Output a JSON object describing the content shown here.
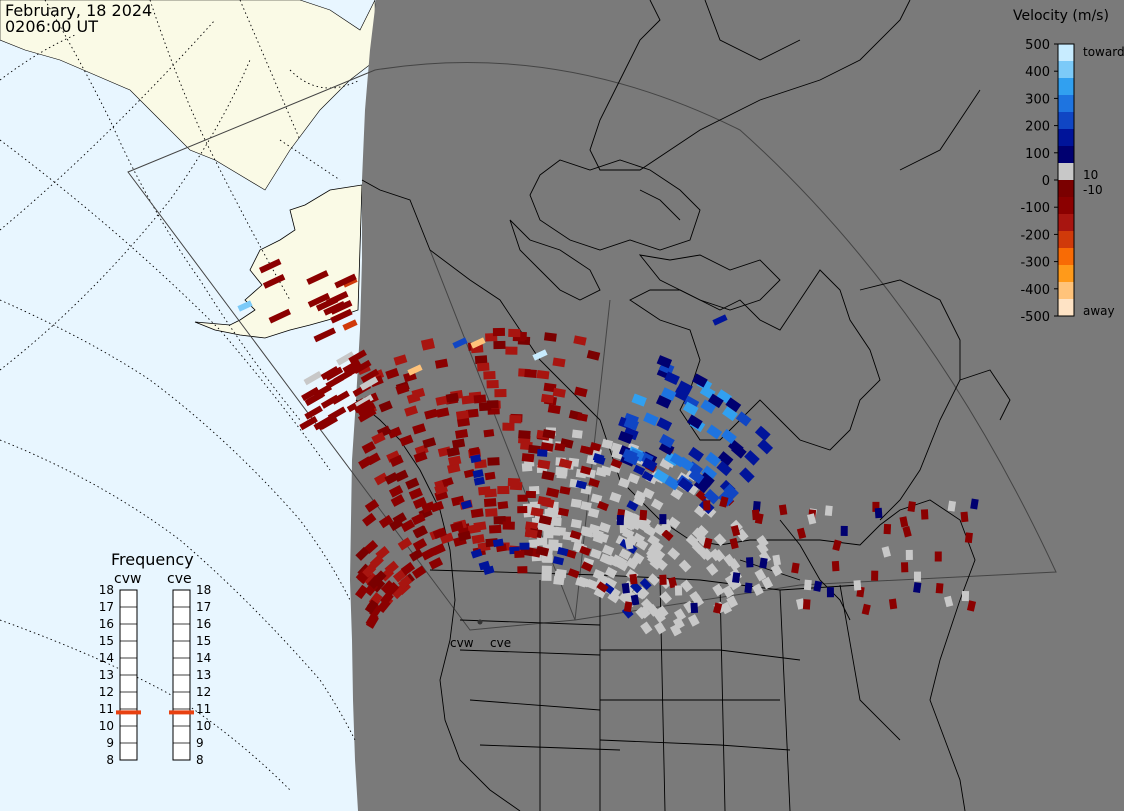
{
  "header": {
    "date": "February, 18 2024",
    "time": "0206:00 UT"
  },
  "colorbar": {
    "title": "Velocity (m/s)",
    "ticks": [
      "500",
      "400",
      "300",
      "200",
      "100",
      "0",
      "-100",
      "-200",
      "-300",
      "-400",
      "-500"
    ],
    "extra_labels": {
      "pos": "10",
      "neg": "-10"
    },
    "toward_label": "toward",
    "away_label": "away",
    "colors": [
      "#fee3c5",
      "#ffc37a",
      "#ff9a1a",
      "#f86b05",
      "#d03a0a",
      "#a81510",
      "#8b0000",
      "#7a0000",
      "#c8c8c8",
      "#000070",
      "#00149a",
      "#1046c4",
      "#1e74e0",
      "#31a0f0",
      "#7ccaf8",
      "#c8ecff"
    ]
  },
  "frequency_panel": {
    "title": "Frequency",
    "radars": [
      "cvw",
      "cve"
    ],
    "scale": [
      "18",
      "17",
      "16",
      "15",
      "14",
      "13",
      "12",
      "11",
      "10",
      "9",
      "8"
    ],
    "range_mhz": [
      8,
      18
    ],
    "values_mhz": {
      "cvw": 10.8,
      "cve": 10.8
    },
    "marker_color": "#e84010"
  },
  "map": {
    "ocean_color": "#e8f6ff",
    "day_land_color": "#fafae6",
    "night_color": "#7a7a7a",
    "scatter_gray": "#c8c8c8",
    "radar_site_labels": [
      "cvw",
      "cve"
    ]
  }
}
